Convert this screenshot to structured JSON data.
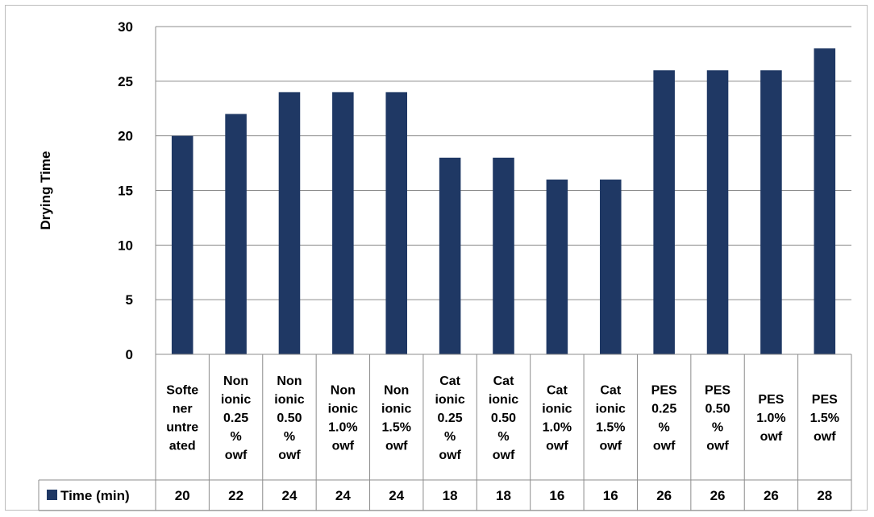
{
  "chart_data": {
    "type": "bar",
    "title": "",
    "xlabel": "",
    "ylabel": "Drying Time",
    "ylim": [
      0,
      30
    ],
    "yticks": [
      0,
      5,
      10,
      15,
      20,
      25,
      30
    ],
    "grid": true,
    "legend_position": "data-table-left",
    "bar_color": "#1f3864",
    "categories": [
      [
        "Softe",
        "ner",
        "untre",
        "ated"
      ],
      [
        "Non",
        "ionic",
        "0.25",
        "%",
        "owf"
      ],
      [
        "Non",
        "ionic",
        "0.50",
        "%",
        "owf"
      ],
      [
        "Non",
        "ionic",
        "1.0%",
        "owf"
      ],
      [
        "Non",
        "ionic",
        "1.5%",
        "owf"
      ],
      [
        "Cat",
        "ionic",
        "0.25",
        "%",
        "owf"
      ],
      [
        "Cat",
        "ionic",
        "0.50",
        "%",
        "owf"
      ],
      [
        "Cat",
        "ionic",
        "1.0%",
        "owf"
      ],
      [
        "Cat",
        "ionic",
        "1.5%",
        "owf"
      ],
      [
        "PES",
        "0.25",
        "%",
        "owf"
      ],
      [
        "PES",
        "0.50",
        "%",
        "owf"
      ],
      [
        "PES",
        "1.0%",
        "owf"
      ],
      [
        "PES",
        "1.5%",
        "owf"
      ]
    ],
    "series": [
      {
        "name": "Time (min)",
        "values": [
          20,
          22,
          24,
          24,
          24,
          18,
          18,
          16,
          16,
          26,
          26,
          26,
          28
        ]
      }
    ]
  }
}
